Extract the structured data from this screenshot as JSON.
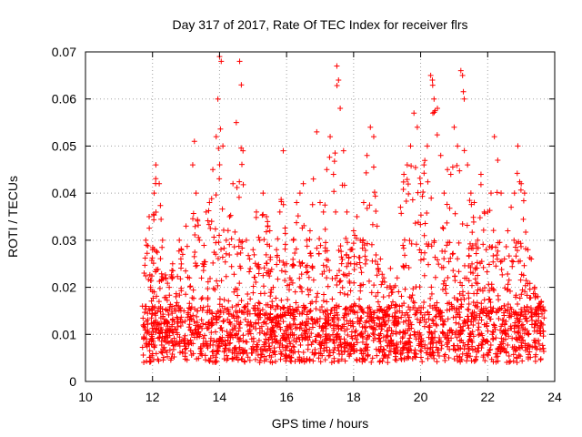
{
  "chart_data": {
    "type": "scatter",
    "title": "Day 317 of 2017, Rate Of TEC Index for receiver flrs",
    "xlabel": "GPS time / hours",
    "ylabel": "ROTI / TECUs",
    "xlim": [
      10,
      24
    ],
    "ylim": [
      0,
      0.07
    ],
    "xticks": [
      "10",
      "12",
      "14",
      "16",
      "18",
      "20",
      "22",
      "24"
    ],
    "yticks": [
      "0",
      "0.01",
      "0.02",
      "0.03",
      "0.04",
      "0.05",
      "0.06",
      "0.07"
    ],
    "grid": true,
    "marker": "plus",
    "color": "#ff0000",
    "series": [
      {
        "x": [
          11.7,
          11.75,
          11.8,
          11.9,
          12.0,
          12.05,
          12.1,
          12.2,
          12.3,
          12.4,
          12.5,
          12.6,
          12.7,
          12.8,
          12.9,
          13.0,
          13.1,
          13.2,
          13.25,
          13.3,
          13.4,
          13.5,
          13.6,
          13.7,
          13.8,
          13.9,
          13.95,
          14.0,
          14.05,
          14.1,
          14.2,
          14.3,
          14.4,
          14.5,
          14.6,
          14.65,
          14.7,
          14.8,
          14.9,
          15.0,
          15.1,
          15.2,
          15.3,
          15.4,
          15.5,
          15.6,
          15.7,
          15.8,
          15.9,
          16.0,
          16.1,
          16.2,
          16.3,
          16.4,
          16.5,
          16.6,
          16.7,
          16.8,
          16.9,
          17.0,
          17.1,
          17.2,
          17.3,
          17.4,
          17.5,
          17.55,
          17.6,
          17.7,
          17.8,
          17.9,
          18.0,
          18.1,
          18.2,
          18.3,
          18.4,
          18.5,
          18.6,
          18.7,
          18.8,
          18.9,
          19.0,
          19.1,
          19.2,
          19.3,
          19.4,
          19.5,
          19.6,
          19.7,
          19.8,
          19.9,
          20.0,
          20.1,
          20.2,
          20.3,
          20.35,
          20.4,
          20.5,
          20.6,
          20.7,
          20.8,
          20.9,
          21.0,
          21.1,
          21.2,
          21.25,
          21.3,
          21.4,
          21.5,
          21.6,
          21.7,
          21.8,
          21.9,
          22.0,
          22.1,
          22.2,
          22.3,
          22.4,
          22.5,
          22.6,
          22.7,
          22.8,
          22.9,
          23.0,
          23.1,
          23.2,
          23.3,
          23.4,
          23.5,
          23.6,
          23.7
        ],
        "y": [
          0.016,
          0.023,
          0.03,
          0.035,
          0.028,
          0.04,
          0.046,
          0.042,
          0.03,
          0.022,
          0.02,
          0.025,
          0.018,
          0.03,
          0.027,
          0.033,
          0.022,
          0.046,
          0.051,
          0.04,
          0.03,
          0.025,
          0.036,
          0.038,
          0.045,
          0.052,
          0.06,
          0.069,
          0.068,
          0.05,
          0.03,
          0.035,
          0.042,
          0.055,
          0.068,
          0.063,
          0.049,
          0.03,
          0.026,
          0.028,
          0.036,
          0.03,
          0.04,
          0.035,
          0.032,
          0.02,
          0.028,
          0.036,
          0.049,
          0.025,
          0.022,
          0.03,
          0.038,
          0.04,
          0.042,
          0.03,
          0.032,
          0.043,
          0.053,
          0.038,
          0.036,
          0.045,
          0.052,
          0.044,
          0.067,
          0.064,
          0.058,
          0.049,
          0.036,
          0.028,
          0.032,
          0.035,
          0.03,
          0.038,
          0.048,
          0.054,
          0.052,
          0.033,
          0.026,
          0.022,
          0.02,
          0.024,
          0.02,
          0.022,
          0.037,
          0.044,
          0.046,
          0.05,
          0.057,
          0.054,
          0.042,
          0.046,
          0.05,
          0.065,
          0.064,
          0.06,
          0.058,
          0.048,
          0.04,
          0.045,
          0.044,
          0.054,
          0.05,
          0.066,
          0.065,
          0.06,
          0.046,
          0.04,
          0.038,
          0.03,
          0.044,
          0.036,
          0.036,
          0.04,
          0.052,
          0.047,
          0.04,
          0.026,
          0.032,
          0.037,
          0.04,
          0.05,
          0.042,
          0.04,
          0.028,
          0.026,
          0.02,
          0.018,
          0.017,
          0.015
        ]
      }
    ]
  }
}
